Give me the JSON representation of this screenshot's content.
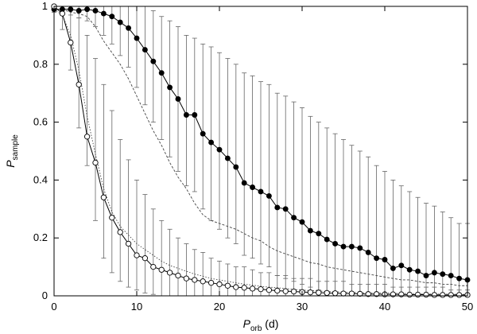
{
  "chart_data": {
    "type": "line",
    "title": "",
    "xlabel": {
      "main": "P",
      "sub": "orb",
      "suffix": " (d)"
    },
    "ylabel": {
      "main": "P",
      "sub": "sample"
    },
    "xlim": [
      0,
      50
    ],
    "ylim": [
      0,
      1
    ],
    "xticks": [
      0,
      10,
      20,
      30,
      40,
      50
    ],
    "yticks": [
      0,
      0.2,
      0.4,
      0.6,
      0.8,
      1
    ],
    "ytick_labels": [
      "0",
      "0.2",
      "0.4",
      "0.6",
      "0.8",
      "1"
    ],
    "grid": false,
    "legend": "none",
    "x": [
      0,
      1,
      2,
      3,
      4,
      5,
      6,
      7,
      8,
      9,
      10,
      11,
      12,
      13,
      14,
      15,
      16,
      17,
      18,
      19,
      20,
      21,
      22,
      23,
      24,
      25,
      26,
      27,
      28,
      29,
      30,
      31,
      32,
      33,
      34,
      35,
      36,
      37,
      38,
      39,
      40,
      41,
      42,
      43,
      44,
      45,
      46,
      47,
      48,
      49,
      50
    ],
    "series": [
      {
        "style": "filled-circles-solid-line",
        "color": "#000000",
        "values": [
          0.99,
          0.99,
          0.99,
          0.985,
          0.99,
          0.985,
          0.975,
          0.965,
          0.945,
          0.925,
          0.89,
          0.85,
          0.81,
          0.77,
          0.72,
          0.68,
          0.625,
          0.625,
          0.56,
          0.53,
          0.505,
          0.475,
          0.445,
          0.39,
          0.375,
          0.36,
          0.345,
          0.305,
          0.3,
          0.27,
          0.255,
          0.225,
          0.215,
          0.195,
          0.18,
          0.17,
          0.17,
          0.165,
          0.15,
          0.13,
          0.125,
          0.095,
          0.105,
          0.09,
          0.085,
          0.07,
          0.08,
          0.075,
          0.07,
          0.06,
          0.055
        ],
        "err_upper": [
          1.0,
          1.0,
          1.0,
          1.0,
          1.0,
          1.0,
          1.0,
          1.0,
          1.0,
          1.0,
          1.0,
          1.0,
          0.985,
          0.965,
          0.95,
          0.93,
          0.9,
          0.89,
          0.87,
          0.86,
          0.84,
          0.82,
          0.8,
          0.77,
          0.76,
          0.74,
          0.73,
          0.7,
          0.69,
          0.67,
          0.65,
          0.62,
          0.6,
          0.58,
          0.56,
          0.54,
          0.52,
          0.5,
          0.48,
          0.45,
          0.43,
          0.4,
          0.38,
          0.36,
          0.34,
          0.32,
          0.31,
          0.29,
          0.27,
          0.25,
          0.25
        ],
        "err_lower": [
          0.98,
          0.98,
          0.97,
          0.96,
          0.95,
          0.93,
          0.9,
          0.87,
          0.83,
          0.79,
          0.72,
          0.66,
          0.6,
          0.54,
          0.48,
          0.43,
          0.38,
          0.36,
          0.3,
          0.26,
          0.23,
          0.2,
          0.18,
          0.14,
          0.13,
          0.11,
          0.1,
          0.07,
          0.06,
          0.05,
          0.04,
          0.03,
          0.02,
          0.015,
          0.01,
          0.005,
          0.005,
          0,
          0,
          0,
          0,
          0,
          0,
          0,
          0,
          0,
          0,
          0,
          0,
          0,
          0
        ]
      },
      {
        "style": "dashed-line",
        "color": "#444444",
        "values": [
          0.99,
          0.99,
          0.98,
          0.975,
          0.965,
          0.93,
          0.88,
          0.84,
          0.8,
          0.75,
          0.69,
          0.63,
          0.57,
          0.52,
          0.46,
          0.41,
          0.37,
          0.32,
          0.28,
          0.26,
          0.25,
          0.24,
          0.23,
          0.215,
          0.2,
          0.19,
          0.17,
          0.155,
          0.145,
          0.135,
          0.125,
          0.115,
          0.11,
          0.1,
          0.095,
          0.09,
          0.085,
          0.08,
          0.075,
          0.07,
          0.065,
          0.06,
          0.055,
          0.055,
          0.05,
          0.045,
          0.045,
          0.04,
          0.04,
          0.035,
          0.035
        ]
      },
      {
        "style": "dotted-line",
        "color": "#444444",
        "values": [
          0.99,
          0.97,
          0.9,
          0.78,
          0.62,
          0.49,
          0.37,
          0.29,
          0.24,
          0.21,
          0.18,
          0.16,
          0.14,
          0.12,
          0.105,
          0.095,
          0.085,
          0.075,
          0.068,
          0.06,
          0.055,
          0.05,
          0.045,
          0.04,
          0.037,
          0.033,
          0.03,
          0.028,
          0.025,
          0.022,
          0.02,
          0.018,
          0.017,
          0.015,
          0.014,
          0.013,
          0.012,
          0.011,
          0.01,
          0.01,
          0.009,
          0.009,
          0.008,
          0.008,
          0.007,
          0.007,
          0.006,
          0.006,
          0.006,
          0.005,
          0.005
        ]
      },
      {
        "style": "open-circles-solid-line",
        "color": "#000000",
        "values": [
          1.0,
          0.975,
          0.875,
          0.73,
          0.55,
          0.46,
          0.34,
          0.27,
          0.22,
          0.18,
          0.14,
          0.13,
          0.1,
          0.09,
          0.08,
          0.07,
          0.06,
          0.055,
          0.05,
          0.045,
          0.04,
          0.035,
          0.03,
          0.028,
          0.025,
          0.023,
          0.02,
          0.018,
          0.016,
          0.015,
          0.013,
          0.012,
          0.011,
          0.01,
          0.009,
          0.008,
          0.008,
          0.007,
          0.006,
          0.006,
          0.005,
          0.005,
          0.005,
          0.004,
          0.004,
          0.004,
          0.003,
          0.003,
          0.003,
          0.003,
          0.003
        ],
        "err_upper": [
          1.0,
          1.0,
          0.99,
          0.96,
          0.9,
          0.82,
          0.73,
          0.64,
          0.54,
          0.47,
          0.4,
          0.35,
          0.3,
          0.26,
          0.23,
          0.2,
          0.18,
          0.16,
          0.15,
          0.13,
          0.12,
          0.11,
          0.1,
          0.1,
          0.09,
          0.08,
          0.08,
          0.07,
          0.07,
          0.06,
          0.06,
          0.06,
          0.05,
          0.05,
          0.05,
          0.05,
          0.04,
          0.04,
          0.04,
          0.04,
          0.04,
          0.03,
          0.03,
          0.03,
          0.03,
          0.03,
          0.03,
          0.03,
          0.02,
          0.02,
          0.02
        ],
        "err_lower": [
          0.98,
          0.92,
          0.78,
          0.58,
          0.45,
          0.26,
          0.13,
          0.08,
          0.05,
          0.03,
          0.02,
          0.01,
          0.005,
          0,
          0,
          0,
          0,
          0,
          0,
          0,
          0,
          0,
          0,
          0,
          0,
          0,
          0,
          0,
          0,
          0,
          0,
          0,
          0,
          0,
          0,
          0,
          0,
          0,
          0,
          0,
          0,
          0,
          0,
          0,
          0,
          0,
          0,
          0,
          0,
          0,
          0
        ]
      }
    ]
  }
}
